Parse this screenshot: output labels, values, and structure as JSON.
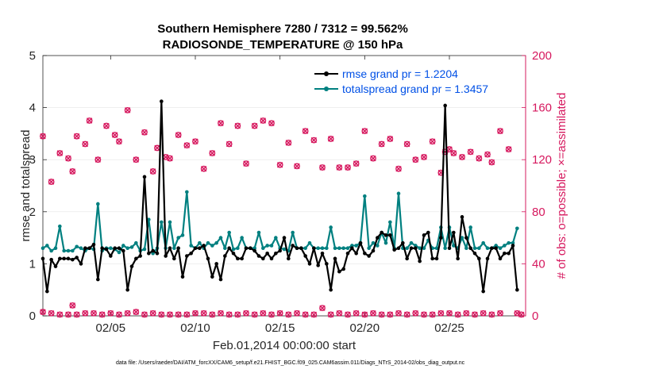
{
  "colors": {
    "rmse": "#000000",
    "spread": "#008080",
    "obs": "#d6185e",
    "legend_text": "#0050e6",
    "axis": "#262626"
  },
  "chart_data": {
    "type": "line",
    "title_line1": "Southern Hemisphere 7280 / 7312 = 99.562%",
    "title_line2": "RADIOSONDE_TEMPERATURE @ 150 hPa",
    "xlabel": "Feb.01,2014 00:00:00 start",
    "ylabel_left": "rmse and totalspread",
    "ylabel_right": "# of obs: o=possible; ×=assimilated",
    "footer": "data file: /Users/raeder/DAI/ATM_forcXX/CAM6_setup/f.e21.FHIST_BGC.f09_025.CAM6assim.011/Diags_NTrS_2014-02/obs_diag_output.nc",
    "xlim": [
      1,
      29.5
    ],
    "ylim_left": [
      0,
      5
    ],
    "ylim_right": [
      0,
      200
    ],
    "x_ticks": [
      5,
      10,
      15,
      20,
      25
    ],
    "x_tick_labels": [
      "02/05",
      "02/10",
      "02/15",
      "02/20",
      "02/25"
    ],
    "y_ticks_left": [
      "0",
      "1",
      "2",
      "3",
      "4",
      "5"
    ],
    "y_ticks_right": [
      "0",
      "40",
      "80",
      "120",
      "160",
      "200"
    ],
    "x": [
      1.0,
      1.25,
      1.5,
      1.75,
      2.0,
      2.25,
      2.5,
      2.75,
      3.0,
      3.25,
      3.5,
      3.75,
      4.0,
      4.25,
      4.5,
      4.75,
      5.0,
      5.25,
      5.5,
      5.75,
      6.0,
      6.25,
      6.5,
      6.75,
      7.0,
      7.25,
      7.5,
      7.75,
      8.0,
      8.25,
      8.5,
      8.75,
      9.0,
      9.25,
      9.5,
      9.75,
      10.0,
      10.25,
      10.5,
      10.75,
      11.0,
      11.25,
      11.5,
      11.75,
      12.0,
      12.25,
      12.5,
      12.75,
      13.0,
      13.25,
      13.5,
      13.75,
      14.0,
      14.25,
      14.5,
      14.75,
      15.0,
      15.25,
      15.5,
      15.75,
      16.0,
      16.25,
      16.5,
      16.75,
      17.0,
      17.25,
      17.5,
      17.75,
      18.0,
      18.25,
      18.5,
      18.75,
      19.0,
      19.25,
      19.5,
      19.75,
      20.0,
      20.25,
      20.5,
      20.75,
      21.0,
      21.25,
      21.5,
      21.75,
      22.0,
      22.25,
      22.5,
      22.75,
      23.0,
      23.25,
      23.5,
      23.75,
      24.0,
      24.25,
      24.5,
      24.75,
      25.0,
      25.25,
      25.5,
      25.75,
      26.0,
      26.25,
      26.5,
      26.75,
      27.0,
      27.25,
      27.5,
      27.75,
      28.0,
      28.25,
      28.5,
      28.75,
      29.0
    ],
    "series": [
      {
        "name": "rmse",
        "legend": "rmse grand pr = 1.2204",
        "values": [
          1.1,
          0.47,
          1.08,
          0.95,
          1.1,
          1.1,
          1.1,
          1.08,
          1.12,
          1.0,
          1.3,
          1.3,
          1.37,
          0.7,
          1.3,
          1.28,
          1.15,
          1.3,
          1.3,
          1.25,
          0.5,
          0.95,
          1.1,
          1.15,
          2.67,
          1.2,
          1.25,
          1.2,
          4.12,
          1.15,
          1.3,
          1.1,
          1.3,
          0.75,
          1.15,
          1.2,
          1.3,
          1.3,
          1.35,
          1.1,
          0.75,
          1.0,
          0.7,
          1.15,
          1.3,
          1.2,
          1.1,
          1.1,
          1.3,
          1.3,
          1.25,
          1.15,
          1.1,
          1.2,
          1.1,
          1.2,
          1.25,
          1.5,
          1.1,
          1.35,
          1.3,
          1.3,
          1.15,
          1.0,
          1.3,
          0.97,
          1.2,
          1.0,
          0.5,
          1.1,
          0.85,
          0.9,
          1.2,
          1.3,
          1.2,
          1.4,
          1.2,
          1.15,
          1.25,
          1.5,
          1.6,
          1.55,
          1.55,
          1.27,
          1.3,
          1.4,
          1.1,
          1.3,
          1.3,
          1.05,
          1.55,
          1.6,
          1.1,
          1.1,
          1.5,
          4.04,
          1.3,
          1.6,
          1.1,
          1.9,
          1.5,
          1.3,
          1.2,
          1.1,
          0.47,
          1.1,
          1.3,
          1.3,
          1.1,
          1.2,
          1.2,
          1.35,
          0.5
        ]
      },
      {
        "name": "totalspread",
        "legend": "totalspread grand pr = 1.3457",
        "values": [
          1.3,
          1.35,
          1.25,
          1.3,
          1.72,
          1.25,
          1.25,
          1.25,
          1.33,
          1.3,
          1.25,
          1.3,
          1.28,
          2.15,
          1.25,
          1.3,
          1.3,
          1.28,
          1.22,
          1.35,
          1.3,
          1.32,
          1.4,
          1.25,
          1.28,
          1.85,
          1.2,
          1.3,
          1.8,
          1.3,
          1.8,
          1.3,
          1.5,
          1.55,
          2.38,
          1.35,
          1.3,
          1.4,
          1.3,
          1.4,
          1.35,
          1.4,
          1.5,
          1.3,
          1.6,
          1.28,
          1.3,
          1.5,
          1.3,
          1.3,
          1.3,
          1.6,
          1.3,
          1.35,
          1.35,
          1.5,
          1.3,
          1.28,
          1.25,
          1.6,
          1.3,
          1.3,
          1.3,
          1.4,
          1.3,
          1.3,
          1.3,
          1.3,
          1.7,
          1.3,
          1.3,
          1.3,
          1.3,
          1.35,
          1.35,
          1.4,
          2.3,
          1.3,
          1.4,
          1.35,
          1.6,
          1.4,
          1.8,
          1.3,
          2.35,
          1.3,
          1.3,
          1.4,
          1.35,
          1.3,
          1.3,
          1.45,
          1.3,
          1.3,
          1.7,
          1.3,
          1.7,
          1.35,
          1.3,
          1.5,
          1.3,
          1.7,
          1.3,
          1.3,
          1.4,
          1.3,
          1.3,
          1.35,
          1.3,
          1.35,
          1.4,
          1.4,
          1.68
        ]
      }
    ],
    "obs_counts_top": [
      [
        1.0,
        138
      ],
      [
        1.5,
        103
      ],
      [
        2.0,
        125
      ],
      [
        2.5,
        121
      ],
      [
        2.75,
        111
      ],
      [
        3.0,
        138
      ],
      [
        3.5,
        132
      ],
      [
        3.75,
        150
      ],
      [
        4.25,
        120
      ],
      [
        4.75,
        146
      ],
      [
        5.25,
        139
      ],
      [
        5.5,
        134
      ],
      [
        6.0,
        158
      ],
      [
        6.5,
        120
      ],
      [
        7.0,
        141
      ],
      [
        7.5,
        111
      ],
      [
        7.75,
        129
      ],
      [
        8.25,
        122
      ],
      [
        8.5,
        121
      ],
      [
        9.0,
        139
      ],
      [
        9.5,
        131
      ],
      [
        10.0,
        134
      ],
      [
        10.5,
        113
      ],
      [
        11.0,
        125
      ],
      [
        11.5,
        148
      ],
      [
        12.0,
        132
      ],
      [
        12.5,
        146
      ],
      [
        13.0,
        117
      ],
      [
        13.5,
        146
      ],
      [
        14.0,
        150
      ],
      [
        14.5,
        148
      ],
      [
        15.0,
        116
      ],
      [
        15.5,
        133
      ],
      [
        16.0,
        115
      ],
      [
        16.5,
        142
      ],
      [
        17.0,
        135
      ],
      [
        17.5,
        114
      ],
      [
        18.0,
        136
      ],
      [
        18.5,
        114
      ],
      [
        19.0,
        114
      ],
      [
        19.5,
        117
      ],
      [
        20.0,
        142
      ],
      [
        20.5,
        121
      ],
      [
        21.0,
        132
      ],
      [
        21.5,
        136
      ],
      [
        22.0,
        113
      ],
      [
        22.5,
        132
      ],
      [
        23.0,
        120
      ],
      [
        23.5,
        122
      ],
      [
        24.0,
        134
      ],
      [
        24.5,
        110
      ],
      [
        24.75,
        126
      ],
      [
        25.0,
        128
      ],
      [
        25.25,
        125
      ],
      [
        25.75,
        122
      ],
      [
        26.25,
        126
      ],
      [
        26.75,
        121
      ],
      [
        27.25,
        124
      ],
      [
        27.5,
        118
      ],
      [
        28.0,
        142
      ],
      [
        28.5,
        128
      ]
    ],
    "obs_counts_bottom": [
      [
        1.0,
        3
      ],
      [
        1.5,
        2
      ],
      [
        2.0,
        1
      ],
      [
        2.5,
        1
      ],
      [
        2.75,
        8
      ],
      [
        3.0,
        1
      ],
      [
        3.5,
        2
      ],
      [
        4.0,
        2
      ],
      [
        4.5,
        1
      ],
      [
        5.0,
        2
      ],
      [
        5.5,
        1
      ],
      [
        6.0,
        2
      ],
      [
        6.5,
        3
      ],
      [
        7.0,
        1
      ],
      [
        7.5,
        2
      ],
      [
        8.0,
        1
      ],
      [
        8.5,
        1
      ],
      [
        9.0,
        1
      ],
      [
        9.5,
        1
      ],
      [
        10.0,
        2
      ],
      [
        10.5,
        2
      ],
      [
        11.0,
        1
      ],
      [
        11.5,
        2
      ],
      [
        12.0,
        1
      ],
      [
        12.5,
        1
      ],
      [
        13.0,
        2
      ],
      [
        13.5,
        1
      ],
      [
        14.0,
        2
      ],
      [
        14.5,
        1
      ],
      [
        15.0,
        2
      ],
      [
        15.5,
        1
      ],
      [
        16.0,
        2
      ],
      [
        16.5,
        1
      ],
      [
        17.0,
        1
      ],
      [
        17.5,
        6
      ],
      [
        18.0,
        1
      ],
      [
        18.5,
        2
      ],
      [
        19.0,
        1
      ],
      [
        19.5,
        2
      ],
      [
        20.0,
        1
      ],
      [
        20.5,
        2
      ],
      [
        21.0,
        1
      ],
      [
        21.5,
        1
      ],
      [
        22.0,
        2
      ],
      [
        22.5,
        1
      ],
      [
        23.0,
        2
      ],
      [
        23.5,
        1
      ],
      [
        24.0,
        1
      ],
      [
        24.5,
        2
      ],
      [
        25.0,
        2
      ],
      [
        25.5,
        1
      ],
      [
        26.0,
        2
      ],
      [
        26.5,
        1
      ],
      [
        27.0,
        2
      ],
      [
        27.5,
        1
      ],
      [
        28.0,
        2
      ],
      [
        29.0,
        2
      ],
      [
        29.25,
        1
      ]
    ]
  }
}
